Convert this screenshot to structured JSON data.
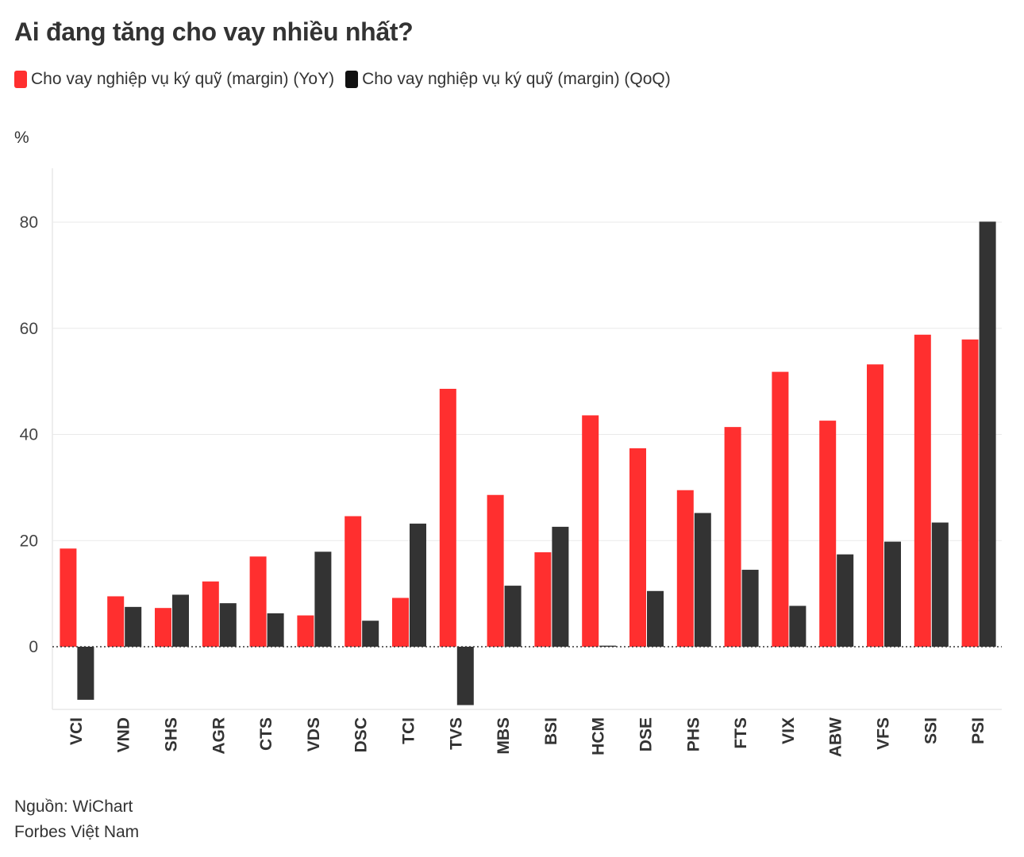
{
  "title": "Ai đang tăng cho vay nhiều nhất?",
  "legend": [
    {
      "label": "Cho vay nghiệp vụ ký quỹ (margin)  (YoY)",
      "color": "#ff2f2f"
    },
    {
      "label": "Cho vay nghiệp vụ ký quỹ (margin) (QoQ)",
      "color": "#333333"
    }
  ],
  "unit_label": "%",
  "footer": {
    "source": "Nguồn: WiChart",
    "publisher": "Forbes Việt Nam"
  },
  "chart_data": {
    "type": "bar",
    "categories": [
      "VCI",
      "VND",
      "SHS",
      "AGR",
      "CTS",
      "VDS",
      "DSC",
      "TCI",
      "TVS",
      "MBS",
      "BSI",
      "HCM",
      "DSE",
      "PHS",
      "FTS",
      "VIX",
      "ABW",
      "VFS",
      "SSI",
      "PSI"
    ],
    "series": [
      {
        "name": "Cho vay nghiệp vụ ký quỹ (margin)  (YoY)",
        "color": "#ff2f2f",
        "values": [
          18.5,
          9.5,
          7.3,
          12.3,
          17.0,
          5.9,
          24.6,
          9.2,
          48.6,
          28.6,
          17.8,
          43.6,
          37.4,
          29.5,
          41.4,
          51.8,
          42.6,
          53.2,
          58.8,
          57.9
        ]
      },
      {
        "name": "Cho vay nghiệp vụ ký quỹ (margin) (QoQ)",
        "color": "#333333",
        "values": [
          -10.0,
          7.5,
          9.8,
          8.2,
          6.3,
          17.9,
          4.9,
          23.2,
          -11.0,
          11.5,
          22.6,
          0.2,
          10.5,
          25.2,
          14.5,
          7.7,
          17.4,
          19.8,
          23.4,
          80.1
        ]
      }
    ],
    "yticks": [
      0,
      20,
      40,
      60,
      80
    ],
    "ylim": [
      -12,
      90
    ],
    "baseline_style": "dotted",
    "grid": true,
    "xlabel": "",
    "ylabel": "%"
  }
}
